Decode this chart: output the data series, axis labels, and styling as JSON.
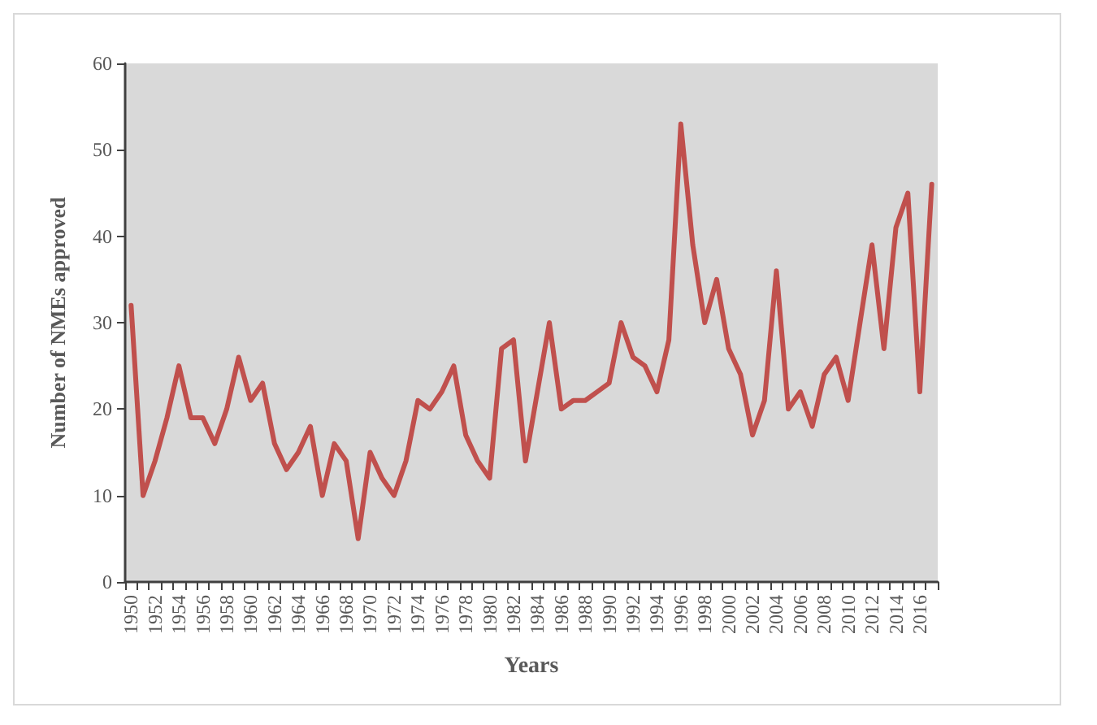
{
  "chart_data": {
    "type": "line",
    "xlabel": "Years",
    "ylabel": "Number of NMEs approved",
    "categories": [
      "1950",
      null,
      "1952",
      null,
      "1954",
      null,
      "1956",
      null,
      "1958",
      null,
      "1960",
      null,
      "1962",
      null,
      "1964",
      null,
      "1966",
      null,
      "1968",
      null,
      "1970",
      null,
      "1972",
      null,
      "1974",
      null,
      "1976",
      null,
      "1978",
      null,
      "1980",
      null,
      "1982",
      null,
      "1984",
      null,
      "1986",
      null,
      "1988",
      null,
      "1990",
      null,
      "1992",
      null,
      "1994",
      null,
      "1996",
      null,
      "1998",
      null,
      "2000",
      null,
      "2002",
      null,
      "2004",
      null,
      "2006",
      null,
      "2008",
      null,
      "2010",
      null,
      "2012",
      null,
      "2014",
      null,
      "2016",
      null
    ],
    "series": [
      {
        "color": "#c0504d",
        "values": [
          32,
          10,
          14,
          19,
          25,
          19,
          19,
          16,
          20,
          26,
          21,
          23,
          16,
          13,
          15,
          18,
          10,
          16,
          14,
          5,
          15,
          12,
          10,
          14,
          21,
          20,
          22,
          25,
          17,
          14,
          12,
          27,
          28,
          14,
          22,
          30,
          20,
          21,
          21,
          22,
          23,
          30,
          26,
          25,
          22,
          28,
          53,
          39,
          30,
          35,
          27,
          24,
          17,
          21,
          36,
          20,
          22,
          18,
          24,
          26,
          21,
          30,
          39,
          27,
          41,
          45,
          22,
          46
        ]
      }
    ],
    "ylim": [
      0,
      60
    ],
    "yticks": [
      0,
      10,
      20,
      30,
      40,
      50,
      60
    ],
    "grid": false,
    "marker": "none",
    "line_style": "solid"
  }
}
